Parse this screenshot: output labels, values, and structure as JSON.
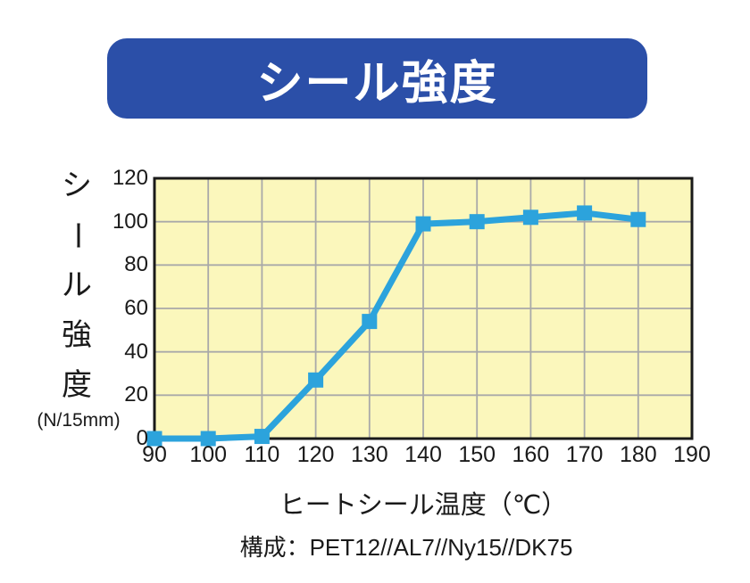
{
  "title_banner": {
    "text": "シール強度",
    "bg_color": "#2B4FA8",
    "text_color": "#FFFFFF"
  },
  "caption": "構成：PET12//AL7//Ny15//DK75",
  "chart_data": {
    "type": "line",
    "series_name": "シール強度",
    "x": [
      90,
      100,
      110,
      120,
      130,
      140,
      150,
      160,
      170,
      180
    ],
    "y": [
      0,
      0,
      1,
      27,
      54,
      99,
      100,
      102,
      104,
      101
    ],
    "xlabel": "ヒートシール温度（℃）",
    "ylabel": "シール強度",
    "ylabel_unit": "(N/15mm)",
    "xlim": [
      90,
      190
    ],
    "ylim": [
      0,
      120
    ],
    "x_ticks": [
      90,
      100,
      110,
      120,
      130,
      140,
      150,
      160,
      170,
      180,
      190
    ],
    "y_ticks": [
      0,
      20,
      40,
      60,
      80,
      100,
      120
    ],
    "grid": true,
    "legend": "none",
    "line_color": "#2CA3DC",
    "marker": "square",
    "marker_size": 17,
    "plot_bg": "#FBF7BC",
    "grid_color": "#A9A9A9",
    "border_color": "#1a1a1a"
  }
}
